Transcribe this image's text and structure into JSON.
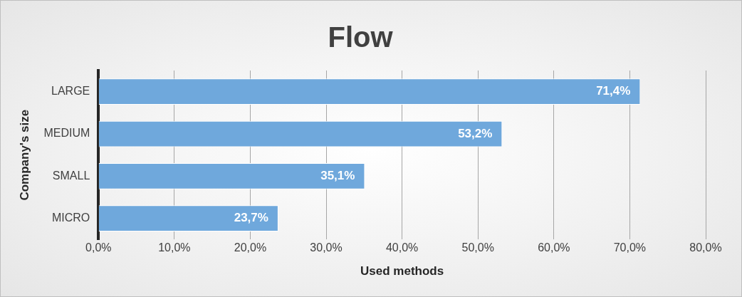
{
  "chart_data": {
    "type": "bar",
    "orientation": "horizontal",
    "title": "Flow",
    "xlabel": "Used methods",
    "ylabel": "Company's size",
    "categories": [
      "LARGE",
      "MEDIUM",
      "SMALL",
      "MICRO"
    ],
    "values": [
      71.4,
      53.2,
      35.1,
      23.7
    ],
    "color": "#6fa8dc",
    "value_labels": [
      "71,4%",
      "53,2%",
      "35,1%",
      "23,7%"
    ],
    "xlim": [
      0,
      80
    ],
    "xticks": [
      {
        "value": 0,
        "label": "0,0%"
      },
      {
        "value": 10,
        "label": "10,0%"
      },
      {
        "value": 20,
        "label": "20,0%"
      },
      {
        "value": 30,
        "label": "30,0%"
      },
      {
        "value": 40,
        "label": "40,0%"
      },
      {
        "value": 50,
        "label": "50,0%"
      },
      {
        "value": 60,
        "label": "60,0%"
      },
      {
        "value": 70,
        "label": "70,0%"
      },
      {
        "value": 80,
        "label": "80,0%"
      }
    ],
    "grid": "x",
    "legend": false
  }
}
